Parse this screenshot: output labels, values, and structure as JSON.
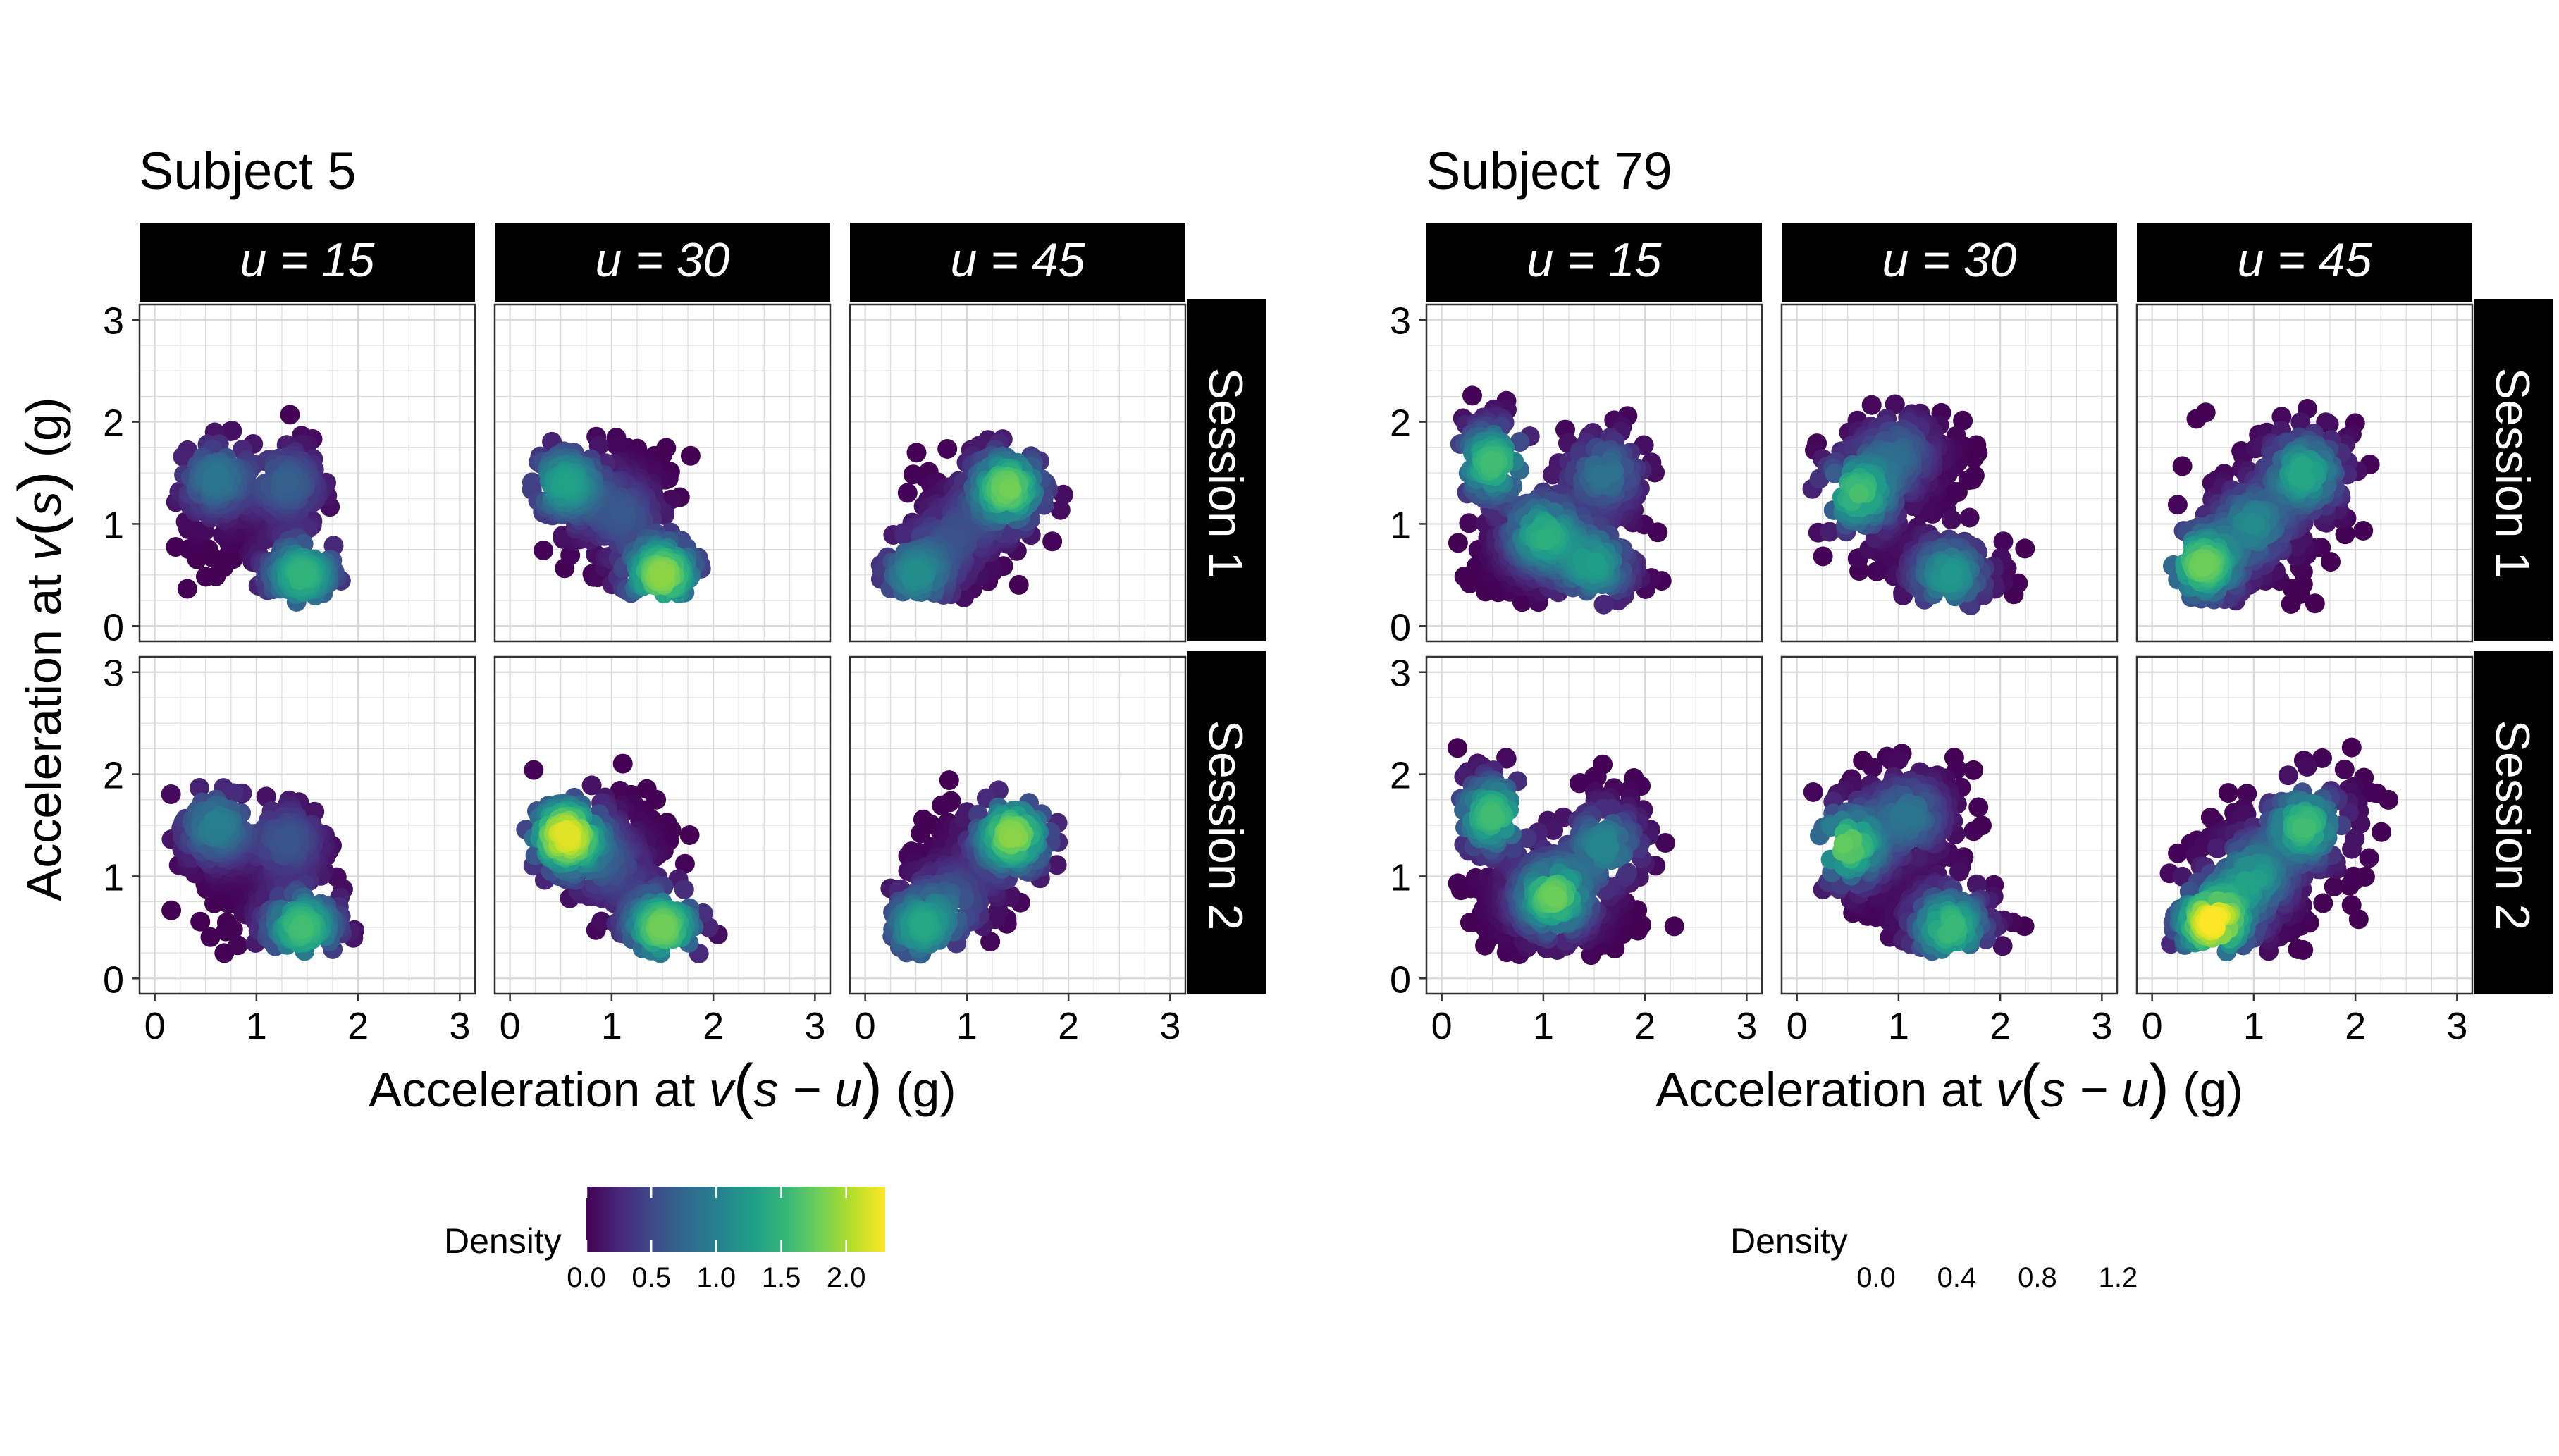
{
  "figure": {
    "x_axis_label": {
      "prefix": "Acceleration at ",
      "v": "v",
      "arg": "s − u",
      "suffix": " (g)"
    },
    "y_axis_label": {
      "prefix": "Acceleration at ",
      "v": "v",
      "arg": "s",
      "suffix": " (g)"
    },
    "x_ticks": [
      "0",
      "1",
      "2",
      "3"
    ],
    "y_ticks": [
      "0",
      "1",
      "2",
      "3"
    ],
    "column_strips": [
      "u = 15",
      "u = 30",
      "u = 45"
    ],
    "row_strips": [
      "Session 1",
      "Session 2"
    ]
  },
  "colors": {
    "viridis": [
      "#440154",
      "#482878",
      "#3e4a89",
      "#31688e",
      "#26828e",
      "#1f9e89",
      "#35b779",
      "#6ece58",
      "#b5de2b",
      "#fde725"
    ],
    "strip_bg": "#000000",
    "strip_text": "#ffffff",
    "grid": "#d9d9d9",
    "panel_border": "#333333"
  },
  "chart_data": [
    {
      "type": "scatter",
      "title": "Subject 5",
      "xlim": [
        -0.15,
        3.15
      ],
      "ylim": [
        -0.15,
        3.15
      ],
      "color_by": "Density",
      "legend": {
        "title": "Density",
        "ticks": [
          "0.0",
          "0.5",
          "1.0",
          "1.5",
          "2.0"
        ],
        "tick_values": [
          0.0,
          0.5,
          1.0,
          1.5,
          2.0
        ],
        "max": 2.3,
        "placement": "bottom"
      },
      "panels": [
        {
          "row": 0,
          "col": 0,
          "shape": "heart",
          "density_peak": 1.5,
          "hotspots": [
            [
              1.45,
              0.5,
              1.5
            ],
            [
              0.6,
              1.45,
              0.9
            ],
            [
              1.3,
              1.4,
              0.7
            ]
          ]
        },
        {
          "row": 0,
          "col": 1,
          "shape": "diag_neg",
          "density_peak": 1.9,
          "hotspots": [
            [
              1.5,
              0.5,
              1.9
            ],
            [
              0.55,
              1.4,
              1.3
            ],
            [
              1.1,
              1.1,
              0.6
            ]
          ]
        },
        {
          "row": 0,
          "col": 2,
          "shape": "diag_pos",
          "density_peak": 1.8,
          "hotspots": [
            [
              1.4,
              1.35,
              1.8
            ],
            [
              0.5,
              0.5,
              1.1
            ],
            [
              0.9,
              0.9,
              0.5
            ]
          ]
        },
        {
          "row": 1,
          "col": 0,
          "shape": "heart",
          "density_peak": 1.6,
          "hotspots": [
            [
              1.45,
              0.5,
              1.6
            ],
            [
              0.6,
              1.5,
              1.0
            ],
            [
              1.3,
              1.35,
              0.6
            ]
          ]
        },
        {
          "row": 1,
          "col": 1,
          "shape": "diag_neg",
          "density_peak": 2.2,
          "hotspots": [
            [
              0.55,
              1.4,
              2.2
            ],
            [
              1.5,
              0.5,
              1.8
            ],
            [
              1.0,
              1.1,
              0.5
            ]
          ]
        },
        {
          "row": 1,
          "col": 2,
          "shape": "diag_pos",
          "density_peak": 2.0,
          "hotspots": [
            [
              1.45,
              1.4,
              1.9
            ],
            [
              0.55,
              0.5,
              1.3
            ],
            [
              0.9,
              0.8,
              0.5
            ]
          ]
        }
      ]
    },
    {
      "type": "scatter",
      "title": "Subject 79",
      "xlim": [
        -0.15,
        3.15
      ],
      "ylim": [
        -0.15,
        3.15
      ],
      "color_by": "Density",
      "legend": {
        "title": "Density",
        "ticks": [
          "0.0",
          "0.4",
          "0.8",
          "1.2"
        ],
        "tick_values": [
          0.0,
          0.4,
          0.8,
          1.2
        ],
        "max": 1.3,
        "placement": "bottom"
      },
      "panels": [
        {
          "row": 0,
          "col": 0,
          "shape": "x_spread",
          "density_peak": 1.0,
          "hotspots": [
            [
              0.5,
              1.6,
              0.9
            ],
            [
              1.0,
              0.9,
              0.8
            ],
            [
              1.5,
              0.6,
              0.7
            ],
            [
              1.6,
              1.5,
              0.5
            ]
          ]
        },
        {
          "row": 0,
          "col": 1,
          "shape": "blob_neg",
          "density_peak": 1.0,
          "hotspots": [
            [
              0.6,
              1.3,
              0.9
            ],
            [
              1.5,
              0.5,
              0.7
            ],
            [
              1.0,
              1.7,
              0.4
            ]
          ]
        },
        {
          "row": 0,
          "col": 2,
          "shape": "blob_pos",
          "density_peak": 1.1,
          "hotspots": [
            [
              0.5,
              0.6,
              1.0
            ],
            [
              1.5,
              1.5,
              0.8
            ],
            [
              1.0,
              1.0,
              0.6
            ]
          ]
        },
        {
          "row": 1,
          "col": 0,
          "shape": "x_spread",
          "density_peak": 1.1,
          "hotspots": [
            [
              0.5,
              1.6,
              0.9
            ],
            [
              1.1,
              0.8,
              1.0
            ],
            [
              1.6,
              1.3,
              0.6
            ]
          ]
        },
        {
          "row": 1,
          "col": 1,
          "shape": "blob_neg",
          "density_peak": 1.1,
          "hotspots": [
            [
              0.5,
              1.3,
              1.0
            ],
            [
              1.5,
              0.5,
              0.9
            ],
            [
              1.1,
              1.6,
              0.5
            ]
          ]
        },
        {
          "row": 1,
          "col": 2,
          "shape": "blob_pos",
          "density_peak": 1.3,
          "hotspots": [
            [
              0.6,
              0.55,
              1.3
            ],
            [
              1.5,
              1.5,
              0.9
            ],
            [
              1.0,
              1.0,
              0.7
            ]
          ]
        }
      ]
    }
  ]
}
